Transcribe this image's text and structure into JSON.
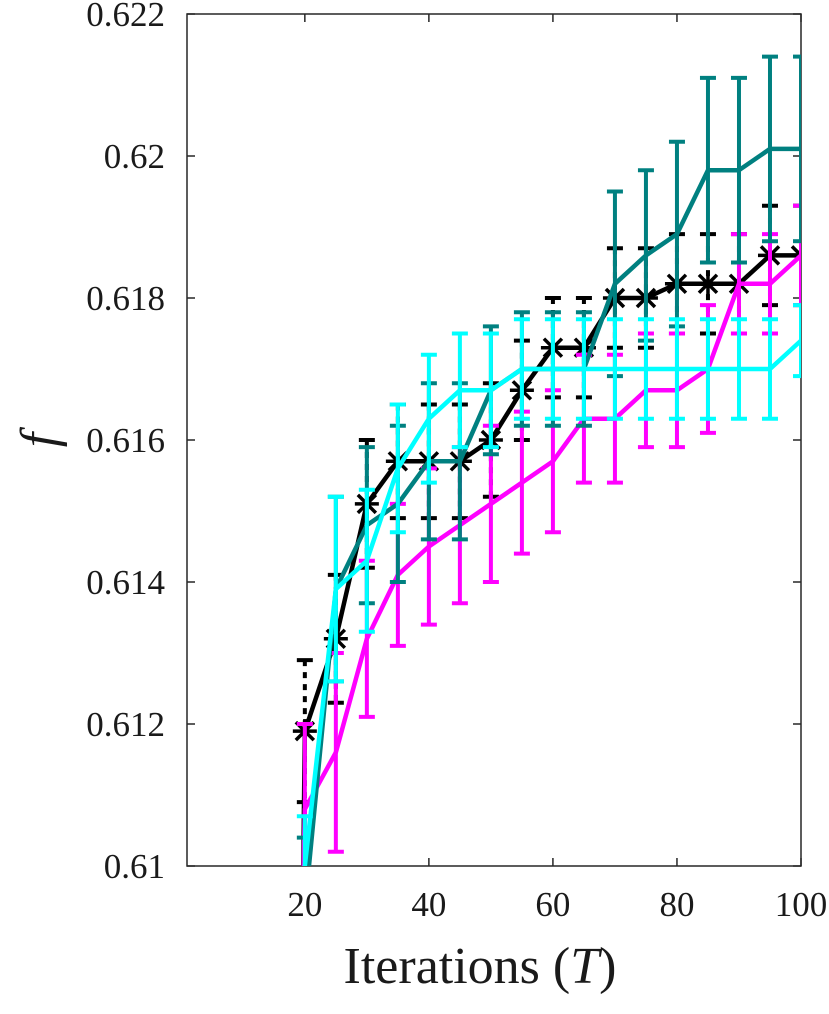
{
  "chart_data": {
    "type": "line",
    "title": "",
    "xlabel": "Iterations (T)",
    "ylabel": "f",
    "xlim": [
      1,
      100
    ],
    "ylim": [
      0.61,
      0.622
    ],
    "xticks": [
      20,
      40,
      60,
      80,
      100
    ],
    "xtick_labels": [
      "20",
      "40",
      "60",
      "80",
      "100"
    ],
    "yticks": [
      0.61,
      0.612,
      0.614,
      0.616,
      0.618,
      0.62,
      0.622
    ],
    "ytick_labels": [
      "0.61",
      "0.612",
      "0.614",
      "0.616",
      "0.618",
      "0.62",
      "0.622"
    ],
    "grid": false,
    "legend": null,
    "x": [
      20,
      25,
      30,
      35,
      40,
      45,
      50,
      55,
      60,
      65,
      70,
      75,
      80,
      85,
      90,
      95,
      100
    ],
    "series": [
      {
        "color": "#000000",
        "marker": "asterisk",
        "errorbar_style": "dashed",
        "values": [
          0.6119,
          0.6132,
          0.6151,
          0.6157,
          0.6157,
          0.6157,
          0.616,
          0.6167,
          0.6173,
          0.6173,
          0.618,
          0.618,
          0.6182,
          0.6182,
          0.6182,
          0.6186,
          0.6186
        ],
        "error": [
          0.001,
          0.0009,
          0.0009,
          0.0008,
          0.0008,
          0.0008,
          0.0008,
          0.0007,
          0.0007,
          0.0007,
          0.0007,
          0.0007,
          0.0007,
          0.0007,
          0.0007,
          0.0007,
          0.0007
        ]
      },
      {
        "color": "#ff00ff",
        "marker": "none",
        "errorbar_style": "solid",
        "values": [
          0.6108,
          0.6116,
          0.6132,
          0.6141,
          0.6145,
          0.6148,
          0.6151,
          0.6154,
          0.6157,
          0.6163,
          0.6163,
          0.6167,
          0.6167,
          0.617,
          0.6182,
          0.6182,
          0.6186
        ],
        "error": [
          0.0012,
          0.0014,
          0.0011,
          0.001,
          0.0011,
          0.0011,
          0.0011,
          0.001,
          0.001,
          0.0009,
          0.0009,
          0.0008,
          0.0008,
          0.0009,
          0.0007,
          0.0007,
          0.0007
        ]
      },
      {
        "color": "#008080",
        "marker": "none",
        "errorbar_style": "solid",
        "values": [
          0.6094,
          0.6139,
          0.6148,
          0.6151,
          0.6157,
          0.6157,
          0.6167,
          0.617,
          0.617,
          0.617,
          0.6182,
          0.6186,
          0.6189,
          0.6198,
          0.6198,
          0.6201,
          0.6201
        ],
        "error": [
          0.001,
          0.0013,
          0.0011,
          0.0011,
          0.0011,
          0.0011,
          0.0009,
          0.0008,
          0.0008,
          0.0008,
          0.0013,
          0.0012,
          0.0013,
          0.0013,
          0.0013,
          0.0013,
          0.0013
        ]
      },
      {
        "color": "#00ffff",
        "marker": "none",
        "errorbar_style": "solid",
        "values": [
          0.61,
          0.6139,
          0.6143,
          0.6156,
          0.6163,
          0.6167,
          0.6167,
          0.617,
          0.617,
          0.617,
          0.617,
          0.617,
          0.617,
          0.617,
          0.617,
          0.617,
          0.6174
        ],
        "error": [
          0.0007,
          0.0013,
          0.001,
          0.0009,
          0.0009,
          0.0008,
          0.0008,
          0.0007,
          0.0007,
          0.0007,
          0.0007,
          0.0007,
          0.0007,
          0.0007,
          0.0007,
          0.0007,
          0.0005
        ]
      }
    ]
  }
}
